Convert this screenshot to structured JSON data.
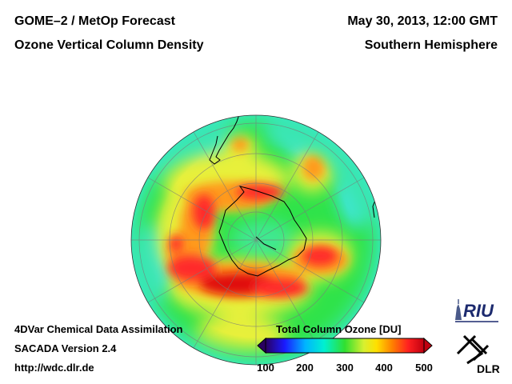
{
  "header": {
    "title_left_1": "GOME–2 / MetOp Forecast",
    "title_left_2": "Ozone Vertical Column Density",
    "title_right_1": "May 30, 2013, 12:00 GMT",
    "title_right_2": "Southern Hemisphere"
  },
  "footer": {
    "line1": "4DVar Chemical Data Assimilation",
    "line2": "SACADA Version 2.4",
    "line3": "http://wdc.dlr.de"
  },
  "colorbar": {
    "title": "Total Column Ozone [DU]",
    "ticks": [
      "100",
      "200",
      "300",
      "400",
      "500"
    ],
    "range": [
      100,
      500
    ],
    "colors": [
      "#2a0060",
      "#1a1aff",
      "#00b4ff",
      "#00f0d0",
      "#30e030",
      "#d8f030",
      "#ffe000",
      "#ff8000",
      "#ff2020",
      "#c00010"
    ]
  },
  "logos": {
    "riu": "RIU",
    "dlr": "DLR"
  },
  "map": {
    "projection": "polar stereographic",
    "hemisphere": "Southern",
    "ozone_palette": {
      "background": "#2fe34a",
      "cyan": "#3fe6e0",
      "yellow": "#e8f03a",
      "orange": "#ff9a1e",
      "red": "#ff2a2a",
      "dark_red": "#e01010"
    }
  }
}
